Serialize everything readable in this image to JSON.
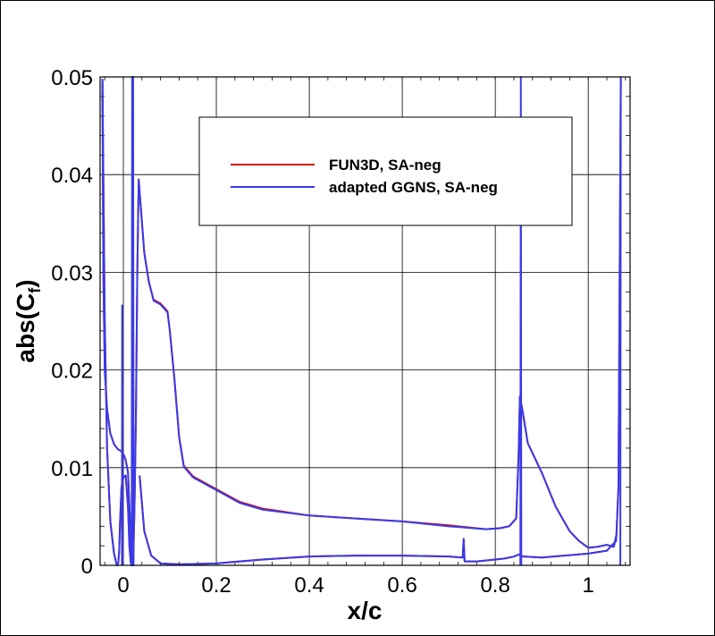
{
  "chart_data": {
    "type": "line",
    "xlabel": "x/c",
    "ylabel_base": "abs(C",
    "ylabel_sub": "f",
    "ylabel_close": ")",
    "xlim": [
      -0.05,
      1.09
    ],
    "ylim": [
      0,
      0.05
    ],
    "xticks": [
      0,
      0.2,
      0.4,
      0.6,
      0.8,
      1
    ],
    "xtick_labels": [
      "0",
      "0.2",
      "0.4",
      "0.6",
      "0.8",
      "1"
    ],
    "yticks": [
      0,
      0.01,
      0.02,
      0.03,
      0.04,
      0.05
    ],
    "ytick_labels": [
      "0",
      "0.01",
      "0.02",
      "0.03",
      "0.04",
      "0.05"
    ],
    "grid": true,
    "legend_position": "top-center",
    "series": [
      {
        "name": "FUN3D, SA-neg",
        "color": "#d01010",
        "segments": [
          [
            [
              -0.045,
              0.0498
            ],
            [
              -0.043,
              0.03
            ],
            [
              -0.04,
              0.02
            ],
            [
              -0.035,
              0.016
            ],
            [
              -0.028,
              0.0135
            ],
            [
              -0.02,
              0.0124
            ],
            [
              -0.012,
              0.0119
            ],
            [
              -0.005,
              0.0117
            ],
            [
              0.0,
              0.0114
            ],
            [
              0.005,
              0.0108
            ],
            [
              0.01,
              0.0095
            ],
            [
              0.014,
              0.005
            ],
            [
              0.016,
              0.0003
            ],
            [
              0.018,
              0.0
            ],
            [
              0.021,
              0.0
            ],
            [
              0.024,
              0.006
            ],
            [
              0.027,
              0.015
            ],
            [
              0.03,
              0.03
            ],
            [
              0.033,
              0.0395
            ],
            [
              0.037,
              0.037
            ],
            [
              0.045,
              0.032
            ],
            [
              0.055,
              0.029
            ],
            [
              0.065,
              0.0272
            ],
            [
              0.08,
              0.0268
            ],
            [
              0.095,
              0.026
            ],
            [
              0.1,
              0.024
            ],
            [
              0.11,
              0.019
            ],
            [
              0.12,
              0.0132
            ],
            [
              0.13,
              0.0102
            ],
            [
              0.15,
              0.0091
            ],
            [
              0.2,
              0.0078
            ],
            [
              0.25,
              0.0065
            ],
            [
              0.3,
              0.0058
            ],
            [
              0.4,
              0.0051
            ],
            [
              0.5,
              0.0048
            ],
            [
              0.6,
              0.0045
            ],
            [
              0.7,
              0.0041
            ],
            [
              0.78,
              0.0037
            ],
            [
              0.81,
              0.0038
            ],
            [
              0.83,
              0.004
            ],
            [
              0.845,
              0.0048
            ],
            [
              0.85,
              0.011
            ],
            [
              0.853,
              0.0172
            ],
            [
              0.858,
              0.016
            ],
            [
              0.87,
              0.0125
            ],
            [
              0.9,
              0.0095
            ],
            [
              0.93,
              0.006
            ],
            [
              0.96,
              0.0035
            ],
            [
              0.98,
              0.0025
            ],
            [
              1.0,
              0.0018
            ],
            [
              1.02,
              0.0019
            ],
            [
              1.04,
              0.0021
            ],
            [
              1.055,
              0.0019
            ],
            [
              1.06,
              0.003
            ]
          ],
          [
            [
              -0.045,
              0.0496
            ],
            [
              -0.04,
              0.025
            ],
            [
              -0.035,
              0.012
            ],
            [
              -0.028,
              0.0045
            ],
            [
              -0.02,
              0.0012
            ],
            [
              -0.014,
              0.0
            ],
            [
              -0.011,
              0.0002
            ],
            [
              -0.009,
              0.0014
            ],
            [
              -0.007,
              0.0045
            ],
            [
              -0.004,
              0.008
            ],
            [
              0.0,
              0.009
            ],
            [
              0.005,
              0.0092
            ],
            [
              0.01,
              0.006
            ],
            [
              0.013,
              0.002
            ],
            [
              0.016,
              0.0003
            ],
            [
              0.02,
              0.0
            ]
          ],
          [
            [
              0.035,
              0.0092
            ],
            [
              0.045,
              0.0035
            ],
            [
              0.06,
              0.001
            ],
            [
              0.08,
              0.0002
            ],
            [
              0.12,
              0.0001
            ],
            [
              0.2,
              0.0002
            ],
            [
              0.3,
              0.0006
            ],
            [
              0.4,
              0.0009
            ],
            [
              0.5,
              0.001
            ],
            [
              0.6,
              0.001
            ],
            [
              0.7,
              0.0009
            ],
            [
              0.73,
              0.0008
            ],
            [
              0.732,
              0.0027
            ],
            [
              0.734,
              0.0004
            ],
            [
              0.76,
              0.0004
            ],
            [
              0.8,
              0.0006
            ],
            [
              0.82,
              0.0007
            ],
            [
              0.84,
              0.0009
            ],
            [
              0.85,
              0.0011
            ],
            [
              0.86,
              0.0009
            ],
            [
              0.9,
              0.0008
            ],
            [
              1.0,
              0.0012
            ],
            [
              1.04,
              0.0015
            ],
            [
              1.06,
              0.0025
            ],
            [
              1.065,
              0.008
            ],
            [
              1.07,
              0.0498
            ]
          ]
        ]
      },
      {
        "name": "adapted GGNS, SA-neg",
        "color": "#3a3ae8",
        "segments": [
          [
            [
              -0.045,
              0.0498
            ],
            [
              -0.043,
              0.03
            ],
            [
              -0.04,
              0.02
            ],
            [
              -0.035,
              0.016
            ],
            [
              -0.028,
              0.0135
            ],
            [
              -0.02,
              0.0124
            ],
            [
              -0.012,
              0.0119
            ],
            [
              -0.005,
              0.0117
            ],
            [
              0.0,
              0.0114
            ],
            [
              0.005,
              0.0108
            ],
            [
              0.01,
              0.0095
            ],
            [
              0.014,
              0.005
            ],
            [
              0.016,
              0.0003
            ],
            [
              0.018,
              0.0
            ],
            [
              0.021,
              0.0
            ],
            [
              0.024,
              0.006
            ],
            [
              0.027,
              0.015
            ],
            [
              0.03,
              0.03
            ],
            [
              0.033,
              0.0395
            ],
            [
              0.037,
              0.037
            ],
            [
              0.045,
              0.032
            ],
            [
              0.055,
              0.029
            ],
            [
              0.065,
              0.0271
            ],
            [
              0.08,
              0.0267
            ],
            [
              0.095,
              0.0259
            ],
            [
              0.1,
              0.024
            ],
            [
              0.11,
              0.019
            ],
            [
              0.12,
              0.0131
            ],
            [
              0.13,
              0.0101
            ],
            [
              0.15,
              0.009
            ],
            [
              0.2,
              0.0077
            ],
            [
              0.25,
              0.0064
            ],
            [
              0.3,
              0.0057
            ],
            [
              0.4,
              0.0051
            ],
            [
              0.5,
              0.0048
            ],
            [
              0.6,
              0.0045
            ],
            [
              0.7,
              0.004
            ],
            [
              0.78,
              0.0037
            ],
            [
              0.81,
              0.0038
            ],
            [
              0.83,
              0.004
            ],
            [
              0.845,
              0.0048
            ],
            [
              0.85,
              0.011
            ],
            [
              0.853,
              0.0173
            ],
            [
              0.858,
              0.016
            ],
            [
              0.87,
              0.0125
            ],
            [
              0.9,
              0.0095
            ],
            [
              0.93,
              0.006
            ],
            [
              0.96,
              0.0035
            ],
            [
              0.98,
              0.0025
            ],
            [
              1.0,
              0.0018
            ],
            [
              1.02,
              0.0019
            ],
            [
              1.04,
              0.0021
            ],
            [
              1.055,
              0.0019
            ],
            [
              1.06,
              0.003
            ]
          ],
          [
            [
              -0.045,
              0.0496
            ],
            [
              -0.04,
              0.025
            ],
            [
              -0.035,
              0.012
            ],
            [
              -0.028,
              0.0045
            ],
            [
              -0.02,
              0.0012
            ],
            [
              -0.014,
              0.0
            ],
            [
              -0.011,
              0.0002
            ],
            [
              -0.009,
              0.0014
            ],
            [
              -0.007,
              0.0045
            ],
            [
              -0.004,
              0.008
            ],
            [
              0.0,
              0.009
            ],
            [
              0.005,
              0.0092
            ],
            [
              0.01,
              0.006
            ],
            [
              0.013,
              0.002
            ],
            [
              0.016,
              0.0003
            ],
            [
              0.02,
              0.0
            ]
          ],
          [
            [
              -0.003,
              0.0
            ],
            [
              -0.0025,
              0.0266
            ],
            [
              -0.002,
              0.0
            ]
          ],
          [
            [
              0.018,
              0.0
            ],
            [
              0.019,
              0.05
            ],
            [
              0.021,
              0.05
            ],
            [
              0.022,
              0.0
            ]
          ],
          [
            [
              0.035,
              0.0092
            ],
            [
              0.045,
              0.0035
            ],
            [
              0.06,
              0.001
            ],
            [
              0.08,
              0.0002
            ],
            [
              0.12,
              0.0001
            ],
            [
              0.2,
              0.0002
            ],
            [
              0.3,
              0.0006
            ],
            [
              0.4,
              0.0009
            ],
            [
              0.5,
              0.001
            ],
            [
              0.6,
              0.001
            ],
            [
              0.7,
              0.0009
            ],
            [
              0.73,
              0.0008
            ],
            [
              0.732,
              0.0027
            ],
            [
              0.734,
              0.0004
            ],
            [
              0.76,
              0.0004
            ],
            [
              0.8,
              0.0006
            ],
            [
              0.82,
              0.0007
            ],
            [
              0.84,
              0.0009
            ],
            [
              0.85,
              0.0011
            ],
            [
              0.86,
              0.0009
            ],
            [
              0.9,
              0.0008
            ],
            [
              1.0,
              0.0012
            ],
            [
              1.04,
              0.0015
            ],
            [
              1.06,
              0.0025
            ],
            [
              1.065,
              0.008
            ],
            [
              1.07,
              0.0498
            ]
          ],
          [
            [
              0.854,
              0.0
            ],
            [
              0.855,
              0.05
            ],
            [
              0.856,
              0.0
            ]
          ],
          [
            [
              1.069,
              0.0
            ],
            [
              1.07,
              0.05
            ]
          ]
        ]
      }
    ]
  }
}
